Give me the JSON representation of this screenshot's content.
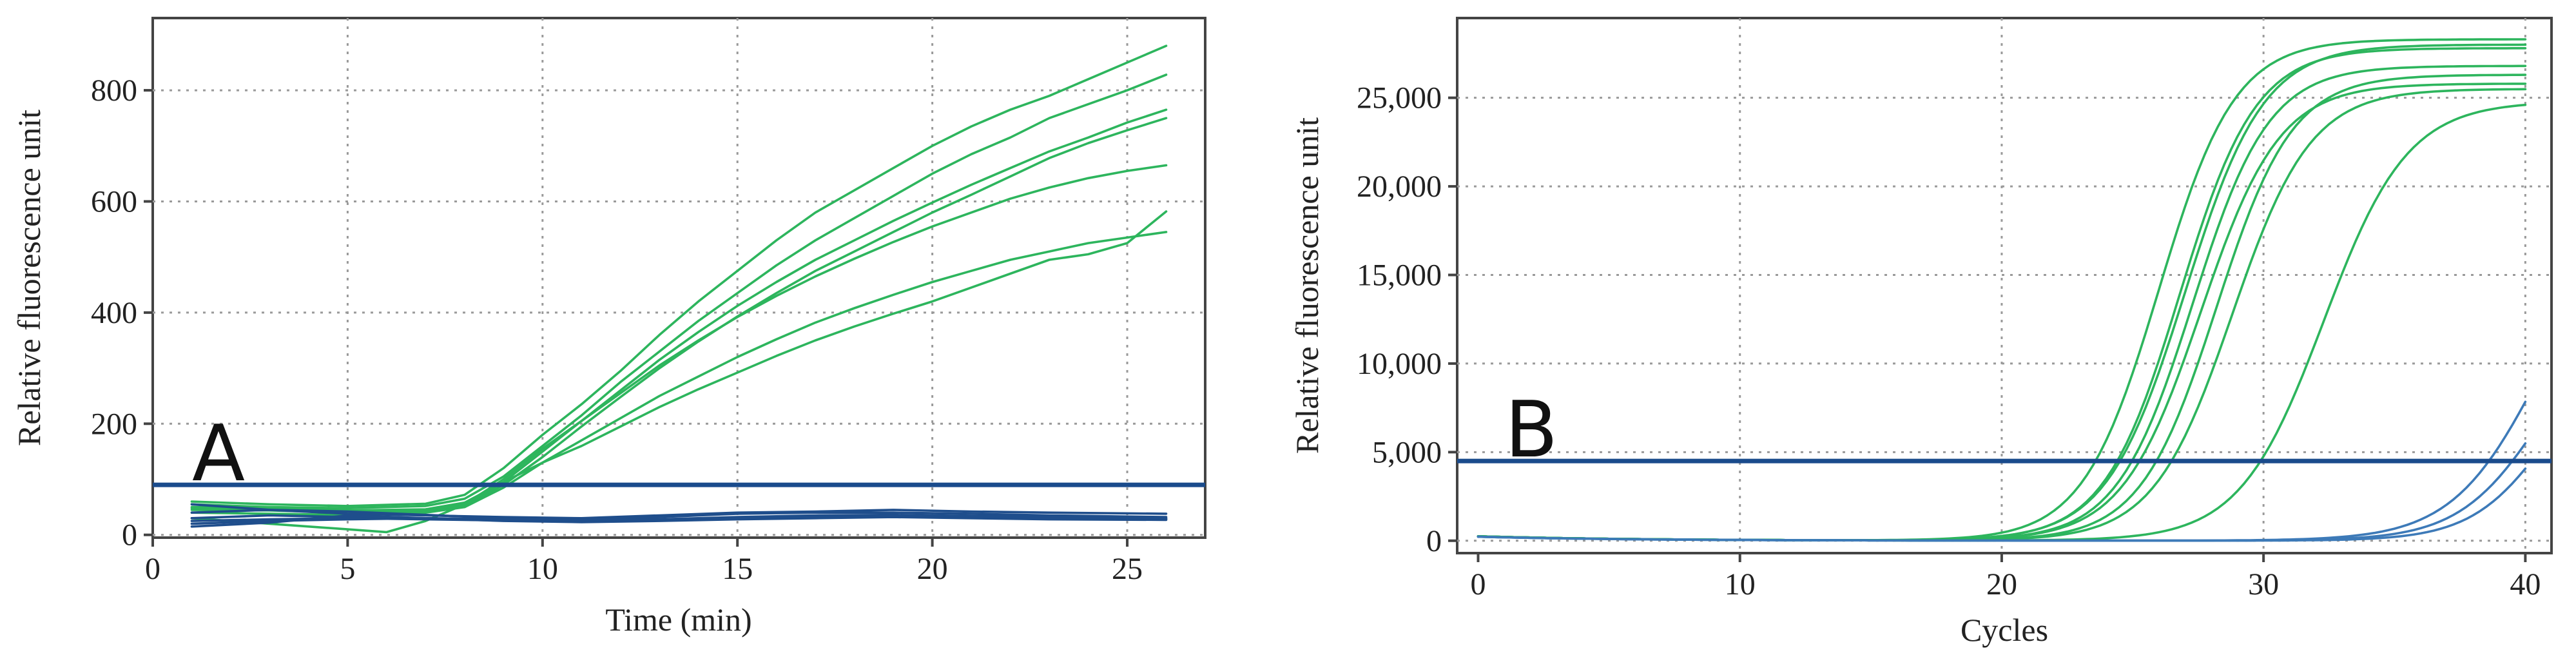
{
  "chart_data": [
    {
      "type": "line",
      "panel_label": "A",
      "xlabel": "Time (min)",
      "ylabel": "Relative fluorescence unit",
      "xlim": [
        0,
        27
      ],
      "ylim": [
        -5,
        930
      ],
      "x_ticks": [
        0,
        5,
        10,
        15,
        20,
        25
      ],
      "y_ticks": [
        0,
        200,
        400,
        600,
        800
      ],
      "y_tick_labels": [
        "0",
        "200",
        "400",
        "600",
        "800"
      ],
      "colors": {
        "positive": "#2db55d",
        "negative": "#1f4e8c",
        "threshold": "#1a4b8c"
      },
      "threshold": 90,
      "series": [
        {
          "name": "positive-1",
          "kind": "positive",
          "x": [
            1,
            3,
            5,
            7,
            8,
            9,
            10,
            11,
            12,
            13,
            14,
            15,
            16,
            17,
            18,
            19,
            20,
            21,
            22,
            23,
            24,
            25,
            26
          ],
          "y": [
            60,
            55,
            52,
            56,
            72,
            120,
            180,
            235,
            295,
            360,
            420,
            475,
            530,
            580,
            620,
            660,
            700,
            735,
            765,
            790,
            820,
            850,
            880
          ]
        },
        {
          "name": "positive-2",
          "kind": "positive",
          "x": [
            1,
            3,
            5,
            7,
            8,
            9,
            10,
            11,
            12,
            13,
            14,
            15,
            16,
            17,
            18,
            19,
            20,
            21,
            22,
            23,
            24,
            25,
            26
          ],
          "y": [
            55,
            50,
            48,
            52,
            65,
            105,
            160,
            215,
            275,
            330,
            385,
            435,
            485,
            530,
            570,
            610,
            650,
            685,
            715,
            750,
            775,
            800,
            828
          ]
        },
        {
          "name": "positive-3",
          "kind": "positive",
          "x": [
            1,
            3,
            5,
            7,
            8,
            9,
            10,
            11,
            12,
            13,
            14,
            15,
            16,
            17,
            18,
            19,
            20,
            21,
            22,
            23,
            24,
            25,
            26
          ],
          "y": [
            50,
            48,
            44,
            46,
            58,
            95,
            150,
            205,
            260,
            315,
            365,
            412,
            455,
            495,
            530,
            565,
            598,
            630,
            660,
            690,
            715,
            742,
            765
          ]
        },
        {
          "name": "positive-4",
          "kind": "positive",
          "x": [
            1,
            3,
            5,
            7,
            8,
            9,
            10,
            11,
            12,
            13,
            14,
            15,
            16,
            17,
            18,
            19,
            20,
            21,
            22,
            23,
            24,
            25,
            26
          ],
          "y": [
            45,
            44,
            40,
            42,
            52,
            90,
            140,
            195,
            248,
            300,
            348,
            393,
            435,
            475,
            510,
            545,
            580,
            612,
            645,
            678,
            705,
            728,
            750
          ]
        },
        {
          "name": "positive-5",
          "kind": "positive",
          "x": [
            1,
            3,
            5,
            7,
            8,
            9,
            10,
            11,
            12,
            13,
            14,
            15,
            16,
            17,
            18,
            19,
            20,
            21,
            22,
            23,
            24,
            25,
            26
          ],
          "y": [
            48,
            46,
            42,
            44,
            55,
            100,
            155,
            205,
            255,
            305,
            350,
            392,
            430,
            465,
            497,
            527,
            555,
            580,
            605,
            625,
            642,
            655,
            665
          ]
        },
        {
          "name": "positive-6",
          "kind": "positive",
          "x": [
            1,
            3,
            5,
            7,
            8,
            9,
            10,
            11,
            12,
            13,
            14,
            15,
            16,
            17,
            18,
            19,
            20,
            21,
            22,
            23,
            24,
            25,
            26
          ],
          "y": [
            40,
            38,
            36,
            40,
            50,
            85,
            130,
            170,
            210,
            250,
            285,
            320,
            352,
            382,
            408,
            432,
            455,
            475,
            495,
            510,
            525,
            535,
            545
          ]
        },
        {
          "name": "positive-7",
          "kind": "positive",
          "x": [
            1,
            3,
            5,
            6,
            7,
            8,
            9,
            10,
            11,
            12,
            13,
            14,
            15,
            16,
            17,
            18,
            19,
            20,
            21,
            22,
            23,
            24,
            25,
            26
          ],
          "y": [
            30,
            20,
            10,
            5,
            25,
            55,
            95,
            130,
            160,
            195,
            230,
            262,
            292,
            322,
            350,
            375,
            398,
            420,
            445,
            470,
            495,
            505,
            525,
            582
          ]
        },
        {
          "name": "negative-1",
          "kind": "negative",
          "x": [
            1,
            3,
            5,
            7,
            9,
            11,
            13,
            15,
            17,
            19,
            21,
            23,
            26
          ],
          "y": [
            55,
            45,
            38,
            35,
            32,
            30,
            35,
            40,
            42,
            45,
            42,
            40,
            38
          ]
        },
        {
          "name": "negative-2",
          "kind": "negative",
          "x": [
            1,
            3,
            5,
            7,
            9,
            11,
            13,
            15,
            17,
            19,
            21,
            23,
            26
          ],
          "y": [
            40,
            45,
            42,
            36,
            30,
            28,
            32,
            38,
            40,
            40,
            38,
            35,
            32
          ]
        },
        {
          "name": "negative-3",
          "kind": "negative",
          "x": [
            1,
            3,
            5,
            7,
            9,
            11,
            13,
            15,
            17,
            19,
            21,
            23,
            26
          ],
          "y": [
            30,
            35,
            32,
            30,
            27,
            25,
            28,
            32,
            35,
            36,
            34,
            33,
            30
          ]
        },
        {
          "name": "negative-4",
          "kind": "negative",
          "x": [
            1,
            3,
            5,
            7,
            9,
            11,
            13,
            15,
            17,
            19,
            21,
            23,
            26
          ],
          "y": [
            25,
            28,
            30,
            28,
            26,
            24,
            26,
            29,
            31,
            33,
            32,
            30,
            28
          ]
        },
        {
          "name": "negative-5",
          "kind": "negative",
          "x": [
            1,
            3,
            5,
            7,
            9,
            11,
            13,
            15,
            17,
            19,
            21,
            23,
            26
          ],
          "y": [
            20,
            25,
            28,
            30,
            28,
            26,
            28,
            30,
            33,
            34,
            33,
            31,
            29
          ]
        },
        {
          "name": "negative-6",
          "kind": "negative",
          "x": [
            1,
            3,
            5,
            7,
            9,
            11,
            13,
            15,
            17,
            19,
            21,
            23,
            26
          ],
          "y": [
            15,
            22,
            35,
            30,
            25,
            23,
            25,
            28,
            30,
            32,
            30,
            28,
            27
          ]
        }
      ]
    },
    {
      "type": "line",
      "panel_label": "B",
      "xlabel": "Cycles",
      "ylabel": "Relative fluorescence unit",
      "xlim": [
        -0.8,
        41
      ],
      "ylim": [
        -700,
        29500
      ],
      "x_ticks": [
        0,
        10,
        20,
        30,
        40
      ],
      "y_ticks": [
        0,
        5000,
        10000,
        15000,
        20000,
        25000
      ],
      "y_tick_labels": [
        "0",
        "5,000",
        "10,000",
        "15,000",
        "20,000",
        "25,000"
      ],
      "colors": {
        "positive": "#2db55d",
        "negative": "#3d7ab8",
        "threshold": "#1a4b8c"
      },
      "threshold": 4500,
      "series": [
        {
          "name": "positive-1",
          "kind": "positive",
          "sigmoid": {
            "plateau": 28300,
            "midpoint": 26.0,
            "slope": 1.45
          }
        },
        {
          "name": "positive-2",
          "kind": "positive",
          "sigmoid": {
            "plateau": 27800,
            "midpoint": 26.8,
            "slope": 1.45
          }
        },
        {
          "name": "positive-3",
          "kind": "positive",
          "sigmoid": {
            "plateau": 28000,
            "midpoint": 27.0,
            "slope": 1.5
          }
        },
        {
          "name": "positive-4",
          "kind": "positive",
          "sigmoid": {
            "plateau": 26800,
            "midpoint": 27.3,
            "slope": 1.45
          }
        },
        {
          "name": "positive-5",
          "kind": "positive",
          "sigmoid": {
            "plateau": 25800,
            "midpoint": 27.6,
            "slope": 1.5
          }
        },
        {
          "name": "positive-6",
          "kind": "positive",
          "sigmoid": {
            "plateau": 26300,
            "midpoint": 28.2,
            "slope": 1.45
          }
        },
        {
          "name": "positive-7",
          "kind": "positive",
          "sigmoid": {
            "plateau": 25500,
            "midpoint": 28.8,
            "slope": 1.5
          }
        },
        {
          "name": "positive-8",
          "kind": "positive",
          "sigmoid": {
            "plateau": 24800,
            "midpoint": 32.3,
            "slope": 1.6
          }
        },
        {
          "name": "negative-1",
          "kind": "negative",
          "sigmoid": {
            "plateau": 19000,
            "midpoint": 40.6,
            "slope": 1.7
          }
        },
        {
          "name": "negative-2",
          "kind": "negative",
          "sigmoid": {
            "plateau": 14000,
            "midpoint": 40.7,
            "slope": 1.6
          }
        },
        {
          "name": "negative-3",
          "kind": "negative",
          "sigmoid": {
            "plateau": 12000,
            "midpoint": 41.0,
            "slope": 1.5
          }
        }
      ]
    }
  ]
}
